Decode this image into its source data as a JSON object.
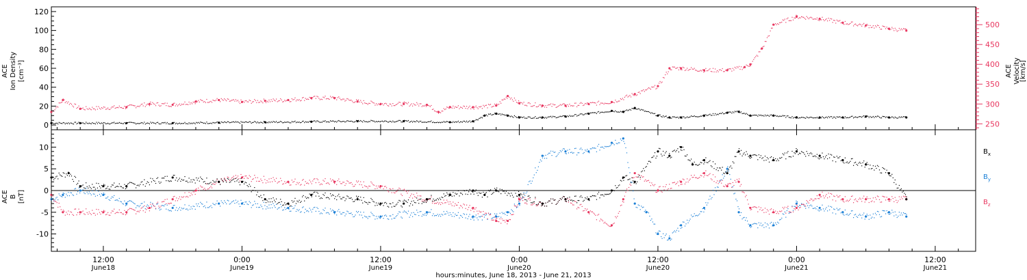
{
  "xlabel": "hours:minutes, June 18, 2013 - June 21, 2013",
  "x_ticks": [
    {
      "t": 12,
      "time": "12:00",
      "day": "June18"
    },
    {
      "t": 24,
      "time": "0:00",
      "day": "June19"
    },
    {
      "t": 36,
      "time": "12:00",
      "day": "June19"
    },
    {
      "t": 48,
      "time": "0:00",
      "day": "June20"
    },
    {
      "t": 60,
      "time": "12:00",
      "day": "June20"
    },
    {
      "t": 72,
      "time": "0:00",
      "day": "June21"
    },
    {
      "t": 84,
      "time": "12:00",
      "day": "June21"
    }
  ],
  "colors": {
    "black": "#000000",
    "pink": "#e8365f",
    "blue": "#1a7fd6"
  },
  "chart_data": [
    {
      "type": "scatter",
      "panel": "top",
      "x_units": "hours since June 18, 2013 00:00",
      "xlim": [
        7.5,
        87.5
      ],
      "ylabel_left": [
        "ACE",
        "Ion Density",
        "[cm⁻³]"
      ],
      "ylabel_right": [
        "ACE",
        "Velocity",
        "[km/s]"
      ],
      "ylim_left": [
        -5,
        125
      ],
      "ylim_right": [
        235,
        545
      ],
      "left_ticks": [
        0,
        20,
        40,
        60,
        80,
        100,
        120
      ],
      "right_ticks": [
        250,
        300,
        350,
        400,
        450,
        500
      ],
      "series": [
        {
          "axis": "left",
          "color": "black",
          "x": [
            7.5,
            10,
            14,
            18,
            22,
            26,
            30,
            34,
            38,
            42,
            44,
            45,
            46,
            47,
            48,
            50,
            52,
            54,
            56,
            57,
            58,
            60,
            61,
            62,
            64,
            66,
            67,
            68,
            70,
            72,
            74,
            76,
            78,
            80,
            81.5
          ],
          "y": [
            2,
            2,
            2,
            2,
            2.5,
            3,
            3.5,
            4,
            4,
            3,
            4,
            10,
            12,
            10,
            8,
            8,
            9,
            12,
            15,
            14,
            18,
            10,
            8,
            8,
            10,
            13,
            14,
            10,
            10,
            8,
            8,
            8,
            9,
            8,
            8
          ]
        },
        {
          "axis": "right",
          "color": "pink",
          "x": [
            7.5,
            8.5,
            10,
            14,
            16,
            18,
            20,
            22,
            24,
            26,
            28,
            30,
            32,
            34,
            36,
            38,
            40,
            41,
            42,
            44,
            46,
            47,
            48,
            50,
            52,
            54,
            56,
            58,
            60,
            61,
            62,
            64,
            66,
            67.5,
            68,
            69,
            70,
            72,
            74,
            76,
            78,
            80,
            81.5
          ],
          "y": [
            280,
            310,
            288,
            292,
            300,
            298,
            306,
            310,
            305,
            308,
            310,
            315,
            315,
            306,
            300,
            300,
            298,
            280,
            292,
            292,
            296,
            320,
            302,
            296,
            296,
            300,
            305,
            325,
            345,
            390,
            390,
            385,
            385,
            393,
            400,
            440,
            500,
            520,
            515,
            505,
            498,
            490,
            485
          ]
        }
      ]
    },
    {
      "type": "scatter",
      "panel": "bottom",
      "x_units": "hours since June 18, 2013 00:00",
      "xlim": [
        7.5,
        87.5
      ],
      "ylabel_left": [
        "ACE",
        "B",
        "[nT]"
      ],
      "ylim": [
        -14,
        14
      ],
      "y_ticks": [
        -10,
        -5,
        0,
        5,
        10
      ],
      "zero_line": true,
      "legend": [
        "Bx",
        "By",
        "Bz"
      ],
      "legend_position": "right",
      "series": [
        {
          "name": "Bx",
          "color": "black",
          "x": [
            7.5,
            9,
            10,
            12,
            14,
            18,
            22,
            24,
            26,
            28,
            30,
            34,
            36,
            38,
            40,
            42,
            44,
            45,
            46,
            48,
            50,
            52,
            54,
            56,
            57,
            58,
            60,
            61,
            62,
            63,
            64,
            66,
            67,
            68,
            70,
            72,
            74,
            76,
            78,
            80,
            81.5
          ],
          "y": [
            3,
            4,
            1,
            1,
            1,
            3,
            2,
            2,
            -2,
            -3,
            -1,
            -2,
            -3,
            -3,
            -2,
            -1,
            0,
            -1,
            0,
            -1,
            -3,
            -2,
            -2,
            0,
            3,
            2,
            9,
            8,
            10,
            6,
            7,
            4,
            9,
            8,
            7,
            9,
            8,
            7,
            6,
            4,
            -2
          ]
        },
        {
          "name": "By",
          "color": "blue",
          "x": [
            7.5,
            8.5,
            10,
            12,
            14,
            18,
            22,
            24,
            28,
            32,
            36,
            40,
            44,
            46,
            47,
            48,
            50,
            52,
            54,
            56,
            57,
            58,
            59,
            60,
            61,
            62,
            64,
            66,
            67,
            68,
            70,
            72,
            74,
            76,
            78,
            80,
            81.5
          ],
          "y": [
            -2,
            -1,
            0,
            -1,
            -3,
            -4,
            -3,
            -3,
            -4,
            -5,
            -6,
            -5,
            -6,
            -6,
            -5,
            -3,
            8,
            9,
            9,
            11,
            12,
            -3,
            -5,
            -10,
            -11,
            -8,
            -4,
            5,
            -5,
            -8,
            -8,
            -3,
            -4,
            -5,
            -6,
            -5,
            -6
          ]
        },
        {
          "name": "Bz",
          "color": "pink",
          "x": [
            7.5,
            8.5,
            10,
            12,
            14,
            16,
            18,
            20,
            22,
            24,
            28,
            32,
            36,
            40,
            44,
            46,
            47,
            48,
            50,
            52,
            54,
            56,
            57,
            58,
            60,
            62,
            64,
            66,
            67,
            68,
            70,
            72,
            74,
            76,
            78,
            80,
            81.5
          ],
          "y": [
            -1,
            -5,
            -5,
            -5,
            -5,
            -4,
            -2,
            0,
            2,
            3,
            2,
            2,
            1,
            -2,
            -4,
            -7,
            -7,
            -2,
            -3,
            -2,
            -5,
            -8,
            -2,
            4,
            0,
            2,
            4,
            1,
            2,
            -4,
            -5,
            -4,
            -1,
            -2,
            -2,
            -2,
            -2
          ]
        }
      ]
    }
  ]
}
